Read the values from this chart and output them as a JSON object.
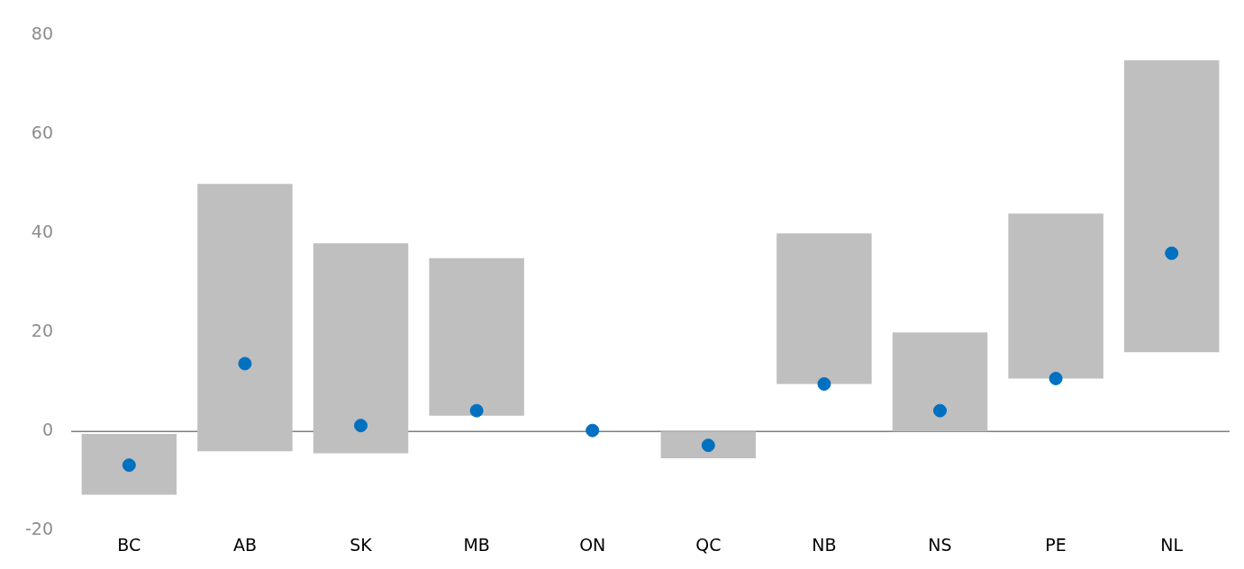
{
  "chart_data": {
    "type": "bar",
    "categories": [
      "BC",
      "AB",
      "SK",
      "MB",
      "ON",
      "QC",
      "NB",
      "NS",
      "PE",
      "NL"
    ],
    "series": [
      {
        "color": "#bfbfbf",
        "base": [
          -12.8,
          -4,
          -4.4,
          3.2,
          null,
          -5.4,
          9.6,
          0,
          10.7,
          16
        ],
        "values": [
          12.3,
          54,
          42.4,
          31.8,
          null,
          5.4,
          30.4,
          20,
          33.3,
          59
        ]
      },
      {
        "type": "scatter",
        "color": "#0070c0",
        "marker": "circle",
        "x": [
          "BC",
          "AB",
          "SK",
          "MB",
          "ON",
          "QC",
          "NB",
          "NS",
          "PE",
          "NL"
        ],
        "values": [
          -6.8,
          13.7,
          1.2,
          4.2,
          0.2,
          -2.8,
          9.6,
          4.2,
          10.7,
          36
        ]
      }
    ],
    "ylim": [
      -20,
      80
    ],
    "yticks": [
      -20,
      0,
      20,
      40,
      60,
      80
    ],
    "grid": false,
    "legend": false,
    "ref_lines": [
      {
        "axis": "y",
        "value": 0,
        "color": "#808080"
      }
    ]
  }
}
